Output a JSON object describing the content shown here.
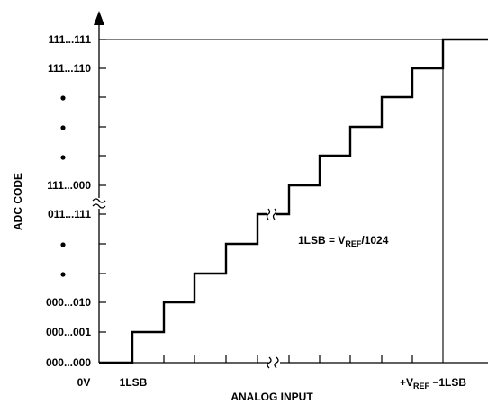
{
  "y_axis_title": "ADC CODE",
  "x_axis_title": "ANALOG INPUT",
  "y_codes": {
    "all_ones": "111...111",
    "all_ones_minus_one": "111...110",
    "upper_mid": "111...000",
    "lower_mid": "011...111",
    "two": "000...010",
    "one": "000...001",
    "zero": "000...000"
  },
  "x_ticks": {
    "zero": "0V",
    "one_lsb": "1LSB",
    "full_scale": "+V",
    "full_scale_sub": "REF",
    "full_scale_suffix": " −1LSB"
  },
  "annotation": {
    "prefix": "1LSB = V",
    "sub": "REF",
    "suffix": "/1024"
  }
}
